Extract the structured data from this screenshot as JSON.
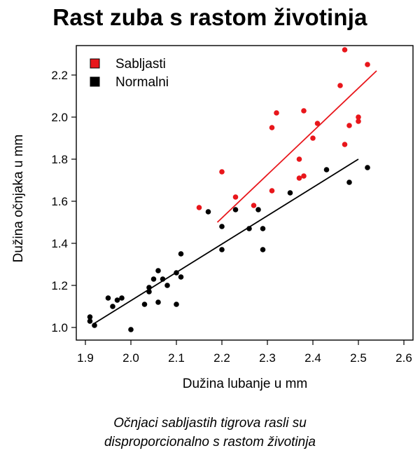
{
  "chart_data": {
    "type": "scatter",
    "title": "Rast zuba s rastom životinja",
    "xlabel": "Dužina lubanje u mm",
    "ylabel": "Dužina očnjaka u mm",
    "xlim": [
      1.88,
      2.62
    ],
    "ylim": [
      0.94,
      2.34
    ],
    "xticks": [
      "1.9",
      "2.0",
      "2.1",
      "2.2",
      "2.3",
      "2.4",
      "2.5",
      "2.6"
    ],
    "yticks": [
      "1.0",
      "1.2",
      "1.4",
      "1.6",
      "1.8",
      "2.0",
      "2.2"
    ],
    "legend_position": "top-left",
    "grid": false,
    "series": [
      {
        "name": "Sabljasti",
        "color": "#e8161b",
        "points": [
          [
            2.15,
            1.57
          ],
          [
            2.2,
            1.74
          ],
          [
            2.23,
            1.62
          ],
          [
            2.27,
            1.58
          ],
          [
            2.31,
            1.65
          ],
          [
            2.31,
            1.95
          ],
          [
            2.32,
            2.02
          ],
          [
            2.37,
            1.71
          ],
          [
            2.37,
            1.8
          ],
          [
            2.38,
            2.03
          ],
          [
            2.38,
            1.72
          ],
          [
            2.4,
            1.9
          ],
          [
            2.41,
            1.97
          ],
          [
            2.46,
            2.15
          ],
          [
            2.47,
            1.87
          ],
          [
            2.48,
            1.96
          ],
          [
            2.47,
            2.32
          ],
          [
            2.5,
            2.0
          ],
          [
            2.5,
            1.98
          ],
          [
            2.52,
            2.25
          ]
        ],
        "trend": [
          [
            2.19,
            1.5
          ],
          [
            2.54,
            2.22
          ]
        ]
      },
      {
        "name": "Normalni",
        "color": "#000000",
        "points": [
          [
            1.91,
            1.05
          ],
          [
            1.91,
            1.03
          ],
          [
            1.92,
            1.01
          ],
          [
            1.95,
            1.14
          ],
          [
            1.96,
            1.1
          ],
          [
            1.97,
            1.13
          ],
          [
            1.98,
            1.14
          ],
          [
            2.0,
            0.99
          ],
          [
            2.03,
            1.11
          ],
          [
            2.04,
            1.17
          ],
          [
            2.04,
            1.19
          ],
          [
            2.05,
            1.23
          ],
          [
            2.06,
            1.27
          ],
          [
            2.06,
            1.12
          ],
          [
            2.07,
            1.23
          ],
          [
            2.08,
            1.2
          ],
          [
            2.1,
            1.11
          ],
          [
            2.1,
            1.26
          ],
          [
            2.11,
            1.24
          ],
          [
            2.11,
            1.35
          ],
          [
            2.17,
            1.55
          ],
          [
            2.2,
            1.37
          ],
          [
            2.2,
            1.48
          ],
          [
            2.23,
            1.56
          ],
          [
            2.26,
            1.47
          ],
          [
            2.28,
            1.56
          ],
          [
            2.29,
            1.47
          ],
          [
            2.29,
            1.37
          ],
          [
            2.35,
            1.64
          ],
          [
            2.43,
            1.75
          ],
          [
            2.48,
            1.69
          ],
          [
            2.52,
            1.76
          ]
        ],
        "trend": [
          [
            1.92,
            1.02
          ],
          [
            2.5,
            1.8
          ]
        ]
      }
    ]
  },
  "caption": {
    "line1": "Očnjaci sabljastih tigrova rasli su",
    "line2": "disproporcionalno s rastom životinja"
  }
}
